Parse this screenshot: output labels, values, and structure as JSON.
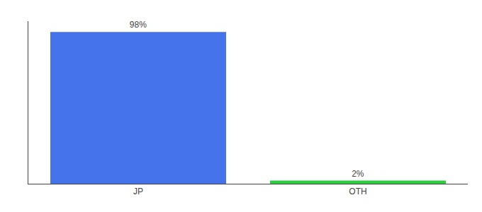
{
  "chart_data": {
    "type": "bar",
    "categories": [
      "JP",
      "OTH"
    ],
    "values": [
      98,
      2
    ],
    "value_labels": [
      "98%",
      "2%"
    ],
    "colors": [
      "#4472e8",
      "#2ecc40"
    ],
    "ylim": [
      0,
      105
    ],
    "yticks": [],
    "grid": false,
    "data_labels": true,
    "tick_labels": "x"
  }
}
